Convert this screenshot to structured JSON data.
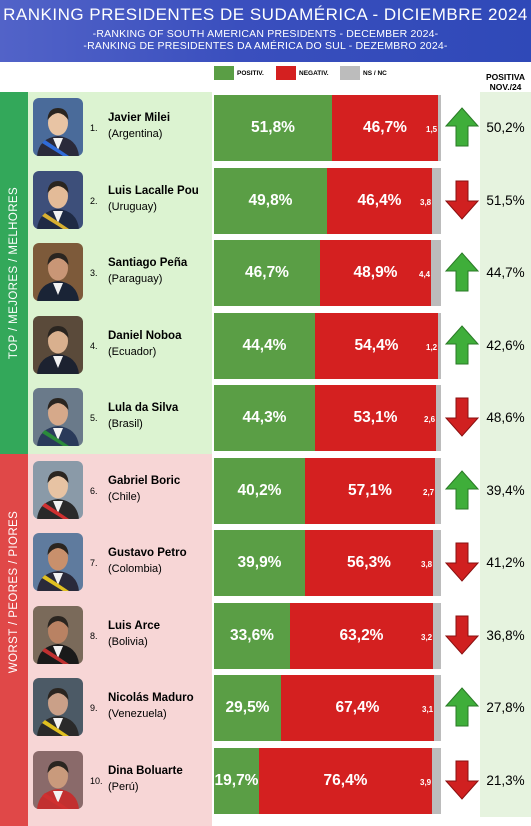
{
  "header": {
    "title": "RANKING PRESIDENTES DE SUDAMÉRICA - DICIEMBRE  2024",
    "subtitle_en": "-RANKING OF SOUTH AMERICAN PRESIDENTS - DECEMBER 2024-",
    "subtitle_pt": "-RANKING DE PRESIDENTES DA AMÉRICA DO SUL - DEZEMBRO 2024-"
  },
  "legend": {
    "positive": "POSITIV.",
    "negative": "NEGATIV.",
    "nsnc": "NS / NC"
  },
  "previous_header": {
    "line1": "POSITIVA",
    "line2": "NOV./24"
  },
  "groups": {
    "top": "TOP / MEJORES / MELHORES",
    "worst": "WORST / PEORES / PIORES"
  },
  "colors": {
    "positive": "#5a9e45",
    "negative": "#d42020",
    "nsnc": "#bcbcbc",
    "arrow_up": "#3fae3a",
    "arrow_down": "#d02020",
    "header": "#3a4fbe"
  },
  "chart_data": {
    "type": "bar",
    "stacked": true,
    "orientation": "horizontal",
    "title": "RANKING PRESIDENTES DE SUDAMÉRICA - DICIEMBRE  2024",
    "categories": [
      "Javier Milei",
      "Luis Lacalle Pou",
      "Santiago Peña",
      "Daniel Noboa",
      "Lula da Silva",
      "Gabriel Boric",
      "Gustavo Petro",
      "Luis Arce",
      "Nicolás Maduro",
      "Dina Boluarte"
    ],
    "series": [
      {
        "name": "POSITIV.",
        "values": [
          51.8,
          49.8,
          46.7,
          44.4,
          44.3,
          40.2,
          39.9,
          33.6,
          29.5,
          19.7
        ]
      },
      {
        "name": "NEGATIV.",
        "values": [
          46.7,
          46.4,
          48.9,
          54.4,
          53.1,
          57.1,
          56.3,
          63.2,
          67.4,
          76.4
        ]
      },
      {
        "name": "NS / NC",
        "values": [
          1.5,
          3.8,
          4.4,
          1.2,
          2.6,
          2.7,
          3.8,
          3.2,
          3.1,
          3.9
        ]
      }
    ],
    "previous_positive": {
      "name": "POSITIVA NOV./24",
      "values": [
        50.2,
        51.5,
        44.7,
        42.6,
        48.6,
        39.4,
        41.2,
        36.8,
        27.8,
        21.3
      ]
    },
    "xlim": [
      0,
      100
    ]
  },
  "rows": [
    {
      "rank": "1.",
      "name": "Javier Milei",
      "country": "(Argentina)",
      "pos": "51,8%",
      "neg": "46,7%",
      "ns": "1,5",
      "prev": "50,2%",
      "trend": "up",
      "portrait": "Javier Milei portrait"
    },
    {
      "rank": "2.",
      "name": "Luis Lacalle Pou",
      "country": "(Uruguay)",
      "pos": "49,8%",
      "neg": "46,4%",
      "ns": "3,8",
      "prev": "51,5%",
      "trend": "down",
      "portrait": "Luis Lacalle Pou portrait"
    },
    {
      "rank": "3.",
      "name": "Santiago Peña",
      "country": "(Paraguay)",
      "pos": "46,7%",
      "neg": "48,9%",
      "ns": "4,4",
      "prev": "44,7%",
      "trend": "up",
      "portrait": "Santiago Peña portrait"
    },
    {
      "rank": "4.",
      "name": "Daniel Noboa",
      "country": "(Ecuador)",
      "pos": "44,4%",
      "neg": "54,4%",
      "ns": "1,2",
      "prev": "42,6%",
      "trend": "up",
      "portrait": "Daniel Noboa portrait"
    },
    {
      "rank": "5.",
      "name": "Lula da Silva",
      "country": "(Brasil)",
      "pos": "44,3%",
      "neg": "53,1%",
      "ns": "2,6",
      "prev": "48,6%",
      "trend": "down",
      "portrait": "Lula da Silva portrait"
    },
    {
      "rank": "6.",
      "name": "Gabriel Boric",
      "country": "(Chile)",
      "pos": "40,2%",
      "neg": "57,1%",
      "ns": "2,7",
      "prev": "39,4%",
      "trend": "up",
      "portrait": "Gabriel Boric portrait"
    },
    {
      "rank": "7.",
      "name": "Gustavo Petro",
      "country": "(Colombia)",
      "pos": "39,9%",
      "neg": "56,3%",
      "ns": "3,8",
      "prev": "41,2%",
      "trend": "down",
      "portrait": "Gustavo Petro portrait"
    },
    {
      "rank": "8.",
      "name": "Luis Arce",
      "country": "(Bolivia)",
      "pos": "33,6%",
      "neg": "63,2%",
      "ns": "3,2",
      "prev": "36,8%",
      "trend": "down",
      "portrait": "Luis Arce portrait"
    },
    {
      "rank": "9.",
      "name": "Nicolás Maduro",
      "country": "(Venezuela)",
      "pos": "29,5%",
      "neg": "67,4%",
      "ns": "3,1",
      "prev": "27,8%",
      "trend": "up",
      "portrait": "Nicolás Maduro portrait"
    },
    {
      "rank": "10.",
      "name": "Dina Boluarte",
      "country": "(Perú)",
      "pos": "19,7%",
      "neg": "76,4%",
      "ns": "3,9",
      "prev": "21,3%",
      "trend": "down",
      "portrait": "Dina Boluarte portrait"
    }
  ]
}
